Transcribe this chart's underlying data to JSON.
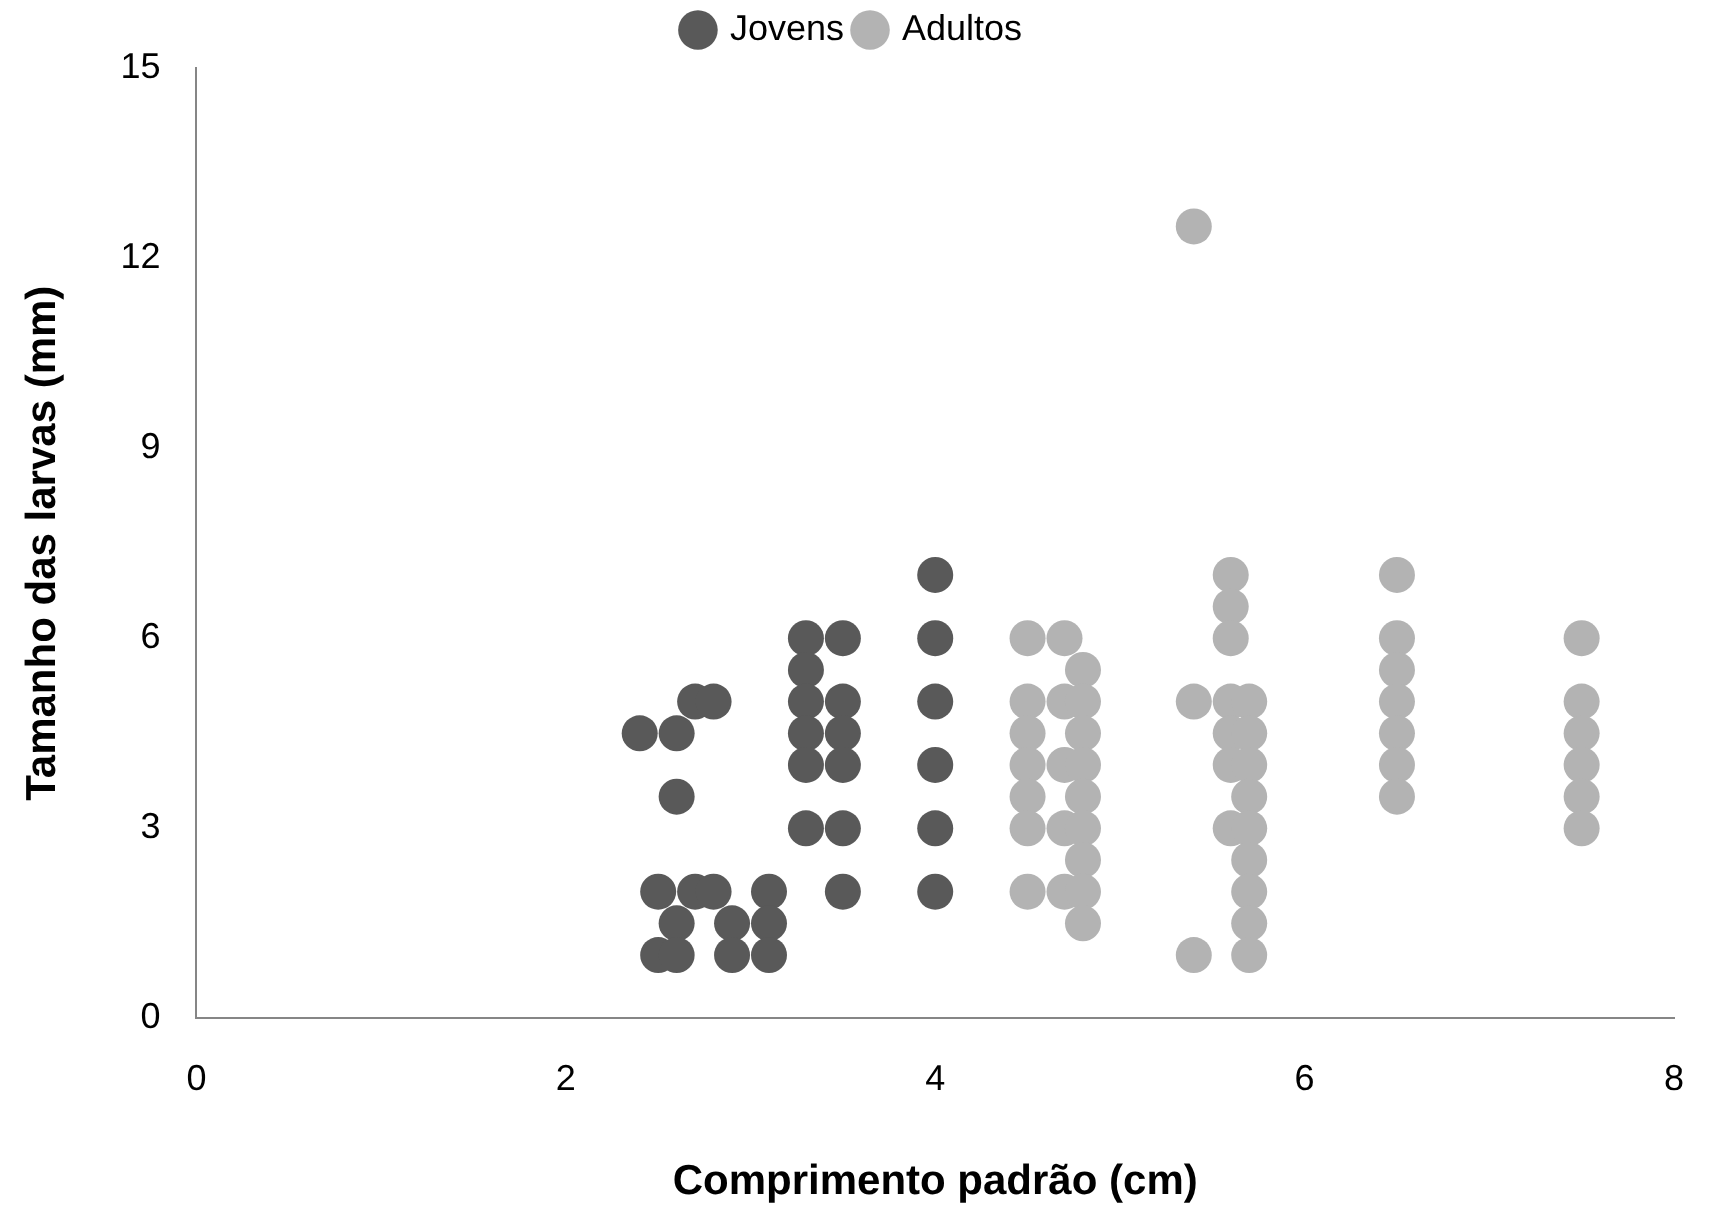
{
  "chart_data": {
    "type": "scatter",
    "xlabel": "Comprimento padrão (cm)",
    "ylabel": "Tamanho das larvas (mm)",
    "xlim": [
      0,
      8
    ],
    "xticks": [
      0,
      2,
      4,
      6,
      8
    ],
    "ylim": [
      0,
      15
    ],
    "yticks": [
      0,
      3,
      6,
      9,
      12,
      15
    ],
    "grid": false,
    "legend": "top",
    "marker": "circle",
    "series": [
      {
        "name": "Jovens",
        "color": "#595959",
        "x": [
          2.4,
          2.5,
          2.5,
          2.6,
          2.6,
          2.6,
          2.6,
          2.7,
          2.7,
          2.8,
          2.8,
          2.9,
          2.9,
          3.1,
          3.1,
          3.1,
          3.3,
          3.3,
          3.3,
          3.3,
          3.3,
          3.3,
          3.5,
          3.5,
          3.5,
          3.5,
          3.5,
          3.5,
          4,
          4,
          4,
          4,
          4,
          4
        ],
        "values": [
          4.5,
          2,
          1,
          4.5,
          3.5,
          1.5,
          1,
          5,
          2,
          5,
          2,
          1.5,
          1,
          2,
          1.5,
          1,
          6,
          5.5,
          5,
          4.5,
          4,
          3,
          6,
          5,
          4.5,
          4,
          3,
          2,
          7,
          6,
          5,
          4,
          3,
          2
        ]
      },
      {
        "name": "Adultos",
        "color": "#b3b3b3",
        "x": [
          4.5,
          4.5,
          4.5,
          4.5,
          4.5,
          4.5,
          4.5,
          4.7,
          4.7,
          4.7,
          4.7,
          4.7,
          4.8,
          4.8,
          4.8,
          4.8,
          4.8,
          4.8,
          4.8,
          4.8,
          4.8,
          5.4,
          5.4,
          5.4,
          5.6,
          5.6,
          5.6,
          5.6,
          5.6,
          5.6,
          5.6,
          5.7,
          5.7,
          5.7,
          5.7,
          5.7,
          5.7,
          5.7,
          5.7,
          5.7,
          6.5,
          6.5,
          6.5,
          6.5,
          6.5,
          6.5,
          6.5,
          7.5,
          7.5,
          7.5,
          7.5,
          7.5,
          7.5
        ],
        "values": [
          6,
          5,
          4.5,
          4,
          3.5,
          3,
          2,
          6,
          5,
          4,
          3,
          2,
          5.5,
          5,
          4.5,
          4,
          3.5,
          3,
          2.5,
          2,
          1.5,
          12.5,
          5,
          1,
          7,
          6.5,
          6,
          5,
          4.5,
          4,
          3,
          5,
          4.5,
          4,
          3.5,
          3,
          2.5,
          2,
          1.5,
          1,
          7,
          6,
          5.5,
          5,
          4.5,
          4,
          3.5,
          6,
          5,
          4.5,
          4,
          3.5,
          3
        ]
      }
    ]
  }
}
